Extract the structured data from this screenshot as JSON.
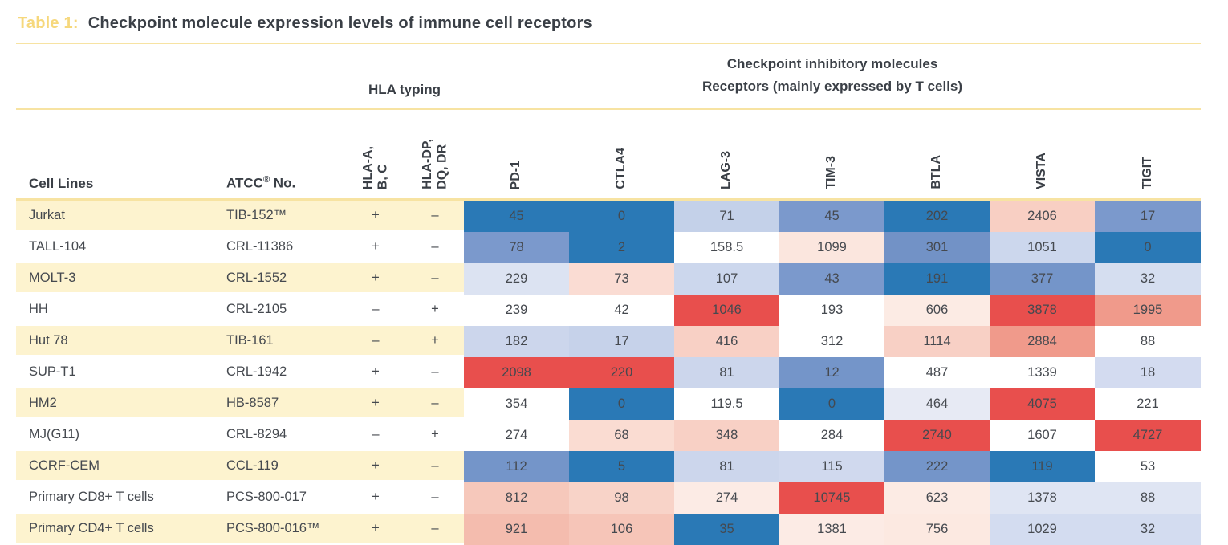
{
  "title": {
    "label": "Table 1:",
    "text": "Checkpoint molecule expression levels of immune cell receptors"
  },
  "groups": {
    "hla": "HLA typing",
    "checkpoint_line1": "Checkpoint inhibitory molecules",
    "checkpoint_line2": "Receptors (mainly expressed by T cells)"
  },
  "columns": {
    "cell_lines": "Cell Lines",
    "atcc_name": "ATCC",
    "atcc_reg": "®",
    "atcc_suffix": " No.",
    "hla_abc": "HLA-A,\nB, C",
    "hla_dpdqdr": "HLA-DP,\nDQ, DR",
    "receptors": [
      "PD-1",
      "CTLA4",
      "LAG-3",
      "TIM-3",
      "BTLA",
      "VISTA",
      "TIGIT"
    ]
  },
  "colors": {
    "accent_gold": "#f6d87c",
    "rule_yellow": "#f7e3a2",
    "row_stripe": "#fdf3cf",
    "heat_low_blue": "#2a79b6",
    "heat_high_red": "#e84f4d",
    "text_dark": "#3a3f46"
  },
  "rows": [
    {
      "cell_line": "Jurkat",
      "atcc": "TIB-152™",
      "hla_abc": "+",
      "hla_dp": "–",
      "values": [
        {
          "v": "45",
          "c": "#2a79b6"
        },
        {
          "v": "0",
          "c": "#2a79b6"
        },
        {
          "v": "71",
          "c": "#c4d1e9"
        },
        {
          "v": "45",
          "c": "#7b99cc"
        },
        {
          "v": "202",
          "c": "#2a79b6"
        },
        {
          "v": "2406",
          "c": "#f8cfc3"
        },
        {
          "v": "17",
          "c": "#7b99cc"
        }
      ]
    },
    {
      "cell_line": "TALL-104",
      "atcc": "CRL-11386",
      "hla_abc": "+",
      "hla_dp": "–",
      "values": [
        {
          "v": "78",
          "c": "#7b99cc"
        },
        {
          "v": "2",
          "c": "#2a79b6"
        },
        {
          "v": "158.5",
          "c": "#ffffff"
        },
        {
          "v": "1099",
          "c": "#fbe6de"
        },
        {
          "v": "301",
          "c": "#7292c6"
        },
        {
          "v": "1051",
          "c": "#ccd7ed"
        },
        {
          "v": "0",
          "c": "#2a79b6"
        }
      ]
    },
    {
      "cell_line": "MOLT-3",
      "atcc": "CRL-1552",
      "hla_abc": "+",
      "hla_dp": "–",
      "values": [
        {
          "v": "229",
          "c": "#dce3f2"
        },
        {
          "v": "73",
          "c": "#fadcd3"
        },
        {
          "v": "107",
          "c": "#ccd7ed"
        },
        {
          "v": "43",
          "c": "#7b99cc"
        },
        {
          "v": "191",
          "c": "#2a79b6"
        },
        {
          "v": "377",
          "c": "#7495c9"
        },
        {
          "v": "32",
          "c": "#d5def0"
        }
      ]
    },
    {
      "cell_line": "HH",
      "atcc": "CRL-2105",
      "hla_abc": "–",
      "hla_dp": "+",
      "values": [
        {
          "v": "239",
          "c": "#ffffff"
        },
        {
          "v": "42",
          "c": "#ffffff"
        },
        {
          "v": "1046",
          "c": "#e84f4d"
        },
        {
          "v": "193",
          "c": "#ffffff"
        },
        {
          "v": "606",
          "c": "#fcebe4"
        },
        {
          "v": "3878",
          "c": "#e84f4d"
        },
        {
          "v": "1995",
          "c": "#f09a8b"
        }
      ]
    },
    {
      "cell_line": "Hut 78",
      "atcc": "TIB-161",
      "hla_abc": "–",
      "hla_dp": "+",
      "values": [
        {
          "v": "182",
          "c": "#ccd6ec"
        },
        {
          "v": "17",
          "c": "#c6d2ea"
        },
        {
          "v": "416",
          "c": "#f8d0c5"
        },
        {
          "v": "312",
          "c": "#ffffff"
        },
        {
          "v": "1114",
          "c": "#f8d0c5"
        },
        {
          "v": "2884",
          "c": "#f09a8b"
        },
        {
          "v": "88",
          "c": "#ffffff"
        }
      ]
    },
    {
      "cell_line": "SUP-T1",
      "atcc": "CRL-1942",
      "hla_abc": "+",
      "hla_dp": "–",
      "values": [
        {
          "v": "2098",
          "c": "#e84f4d"
        },
        {
          "v": "220",
          "c": "#e84f4d"
        },
        {
          "v": "81",
          "c": "#ccd6ec"
        },
        {
          "v": "12",
          "c": "#7495c9"
        },
        {
          "v": "487",
          "c": "#ffffff"
        },
        {
          "v": "1339",
          "c": "#ffffff"
        },
        {
          "v": "18",
          "c": "#d3dbf0"
        }
      ]
    },
    {
      "cell_line": "HM2",
      "atcc": "HB-8587",
      "hla_abc": "+",
      "hla_dp": "–",
      "values": [
        {
          "v": "354",
          "c": "#ffffff"
        },
        {
          "v": "0",
          "c": "#2a79b6"
        },
        {
          "v": "119.5",
          "c": "#ffffff"
        },
        {
          "v": "0",
          "c": "#2a79b6"
        },
        {
          "v": "464",
          "c": "#e7eaf4"
        },
        {
          "v": "4075",
          "c": "#e84f4d"
        },
        {
          "v": "221",
          "c": "#ffffff"
        }
      ]
    },
    {
      "cell_line": "MJ(G11)",
      "atcc": "CRL-8294",
      "hla_abc": "–",
      "hla_dp": "+",
      "values": [
        {
          "v": "274",
          "c": "#ffffff"
        },
        {
          "v": "68",
          "c": "#fadcd2"
        },
        {
          "v": "348",
          "c": "#f8d0c5"
        },
        {
          "v": "284",
          "c": "#ffffff"
        },
        {
          "v": "2740",
          "c": "#e84f4d"
        },
        {
          "v": "1607",
          "c": "#ffffff"
        },
        {
          "v": "4727",
          "c": "#e84f4d"
        }
      ]
    },
    {
      "cell_line": "CCRF-CEM",
      "atcc": "CCL-119",
      "hla_abc": "+",
      "hla_dp": "–",
      "values": [
        {
          "v": "112",
          "c": "#7495c9"
        },
        {
          "v": "5",
          "c": "#2a79b6"
        },
        {
          "v": "81",
          "c": "#ccd6ec"
        },
        {
          "v": "115",
          "c": "#d0d9ee"
        },
        {
          "v": "222",
          "c": "#7495c9"
        },
        {
          "v": "119",
          "c": "#2a79b6"
        },
        {
          "v": "53",
          "c": "#ffffff"
        }
      ]
    },
    {
      "cell_line": "Primary CD8+ T cells",
      "atcc": "PCS-800-017",
      "hla_abc": "+",
      "hla_dp": "–",
      "values": [
        {
          "v": "812",
          "c": "#f6c8bb"
        },
        {
          "v": "98",
          "c": "#f8d3c8"
        },
        {
          "v": "274",
          "c": "#fcebe5"
        },
        {
          "v": "10745",
          "c": "#e84f4d"
        },
        {
          "v": "623",
          "c": "#fcebe4"
        },
        {
          "v": "1378",
          "c": "#dfe5f3"
        },
        {
          "v": "88",
          "c": "#dfe5f3"
        }
      ]
    },
    {
      "cell_line": "Primary CD4+ T cells",
      "atcc": "PCS-800-016™",
      "hla_abc": "+",
      "hla_dp": "–",
      "values": [
        {
          "v": "921",
          "c": "#f4bcae"
        },
        {
          "v": "106",
          "c": "#f6c5b8"
        },
        {
          "v": "35",
          "c": "#2a79b6"
        },
        {
          "v": "1381",
          "c": "#fcebe5"
        },
        {
          "v": "756",
          "c": "#fce9e1"
        },
        {
          "v": "1029",
          "c": "#d3dcf0"
        },
        {
          "v": "32",
          "c": "#d3dcf0"
        }
      ]
    }
  ],
  "chart_data": {
    "type": "heatmap",
    "title": "Checkpoint molecule expression levels of immune cell receptors",
    "column_groups": [
      "HLA typing",
      "Checkpoint inhibitory molecules — Receptors (mainly expressed by T cells)"
    ],
    "row_labels": [
      "Jurkat",
      "TALL-104",
      "MOLT-3",
      "HH",
      "Hut 78",
      "SUP-T1",
      "HM2",
      "MJ(G11)",
      "CCRF-CEM",
      "Primary CD8+ T cells",
      "Primary CD4+ T cells"
    ],
    "atcc_numbers": [
      "TIB-152™",
      "CRL-11386",
      "CRL-1552",
      "CRL-2105",
      "TIB-161",
      "CRL-1942",
      "HB-8587",
      "CRL-8294",
      "CCL-119",
      "PCS-800-017",
      "PCS-800-016™"
    ],
    "hla_typing": {
      "HLA-A, B, C": [
        "+",
        "+",
        "+",
        "–",
        "–",
        "+",
        "+",
        "–",
        "+",
        "+",
        "+"
      ],
      "HLA-DP, DQ, DR": [
        "–",
        "–",
        "–",
        "+",
        "+",
        "–",
        "–",
        "+",
        "–",
        "–",
        "–"
      ]
    },
    "columns": [
      "PD-1",
      "CTLA4",
      "LAG-3",
      "TIM-3",
      "BTLA",
      "VISTA",
      "TIGIT"
    ],
    "values": [
      [
        45,
        0,
        71,
        45,
        202,
        2406,
        17
      ],
      [
        78,
        2,
        158.5,
        1099,
        301,
        1051,
        0
      ],
      [
        229,
        73,
        107,
        43,
        191,
        377,
        32
      ],
      [
        239,
        42,
        1046,
        193,
        606,
        3878,
        1995
      ],
      [
        182,
        17,
        416,
        312,
        1114,
        2884,
        88
      ],
      [
        2098,
        220,
        81,
        12,
        487,
        1339,
        18
      ],
      [
        354,
        0,
        119.5,
        0,
        464,
        4075,
        221
      ],
      [
        274,
        68,
        348,
        284,
        2740,
        1607,
        4727
      ],
      [
        112,
        5,
        81,
        115,
        222,
        119,
        53
      ],
      [
        812,
        98,
        274,
        10745,
        623,
        1378,
        88
      ],
      [
        921,
        106,
        35,
        1381,
        756,
        1029,
        32
      ]
    ],
    "color_scale": "blue = low expression, white = mid, red = high expression",
    "legend_position": "none",
    "grid": false
  }
}
